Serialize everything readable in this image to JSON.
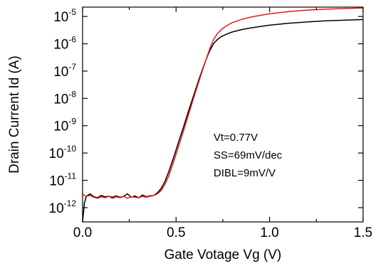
{
  "chart_data": {
    "type": "line",
    "xlabel": "Gate Votage Vg (V)",
    "ylabel": "Drain Current Id (A)",
    "xlim": [
      0.0,
      1.5
    ],
    "ylim": [
      3e-13,
      2.2e-05
    ],
    "yscale": "log",
    "grid": false,
    "x_ticks": [
      "0.0",
      "0.5",
      "1.0",
      "1.5"
    ],
    "x_tick_values": [
      0.0,
      0.5,
      1.0,
      1.5
    ],
    "y_ticks": [
      {
        "base": "10",
        "exp": "-5",
        "value": 1e-05
      },
      {
        "base": "10",
        "exp": "-6",
        "value": 1e-06
      },
      {
        "base": "10",
        "exp": "-7",
        "value": 1e-07
      },
      {
        "base": "10",
        "exp": "-8",
        "value": 1e-08
      },
      {
        "base": "10",
        "exp": "-9",
        "value": 1e-09
      },
      {
        "base": "10",
        "exp": "-10",
        "value": 1e-10
      },
      {
        "base": "10",
        "exp": "-11",
        "value": 1e-11
      },
      {
        "base": "10",
        "exp": "-12",
        "value": 1e-12
      }
    ],
    "annotations": [
      "Vt=0.77V",
      "SS=69mV/dec",
      "DIBL=9mV/V"
    ],
    "series": [
      {
        "color": "#000000",
        "x": [
          0.0,
          0.01,
          0.02,
          0.04,
          0.06,
          0.08,
          0.1,
          0.12,
          0.14,
          0.16,
          0.18,
          0.2,
          0.22,
          0.24,
          0.26,
          0.28,
          0.3,
          0.32,
          0.34,
          0.36,
          0.38,
          0.4,
          0.42,
          0.44,
          0.46,
          0.48,
          0.5,
          0.52,
          0.54,
          0.56,
          0.58,
          0.6,
          0.62,
          0.64,
          0.66,
          0.68,
          0.7,
          0.72,
          0.74,
          0.76,
          0.78,
          0.8,
          0.85,
          0.9,
          0.95,
          1.0,
          1.1,
          1.2,
          1.3,
          1.4,
          1.5
        ],
        "y": [
          3e-13,
          1.5e-12,
          2.6e-12,
          3.2e-12,
          2.5e-12,
          2.3e-12,
          2.8e-12,
          2.5e-12,
          2.6e-12,
          2.4e-12,
          2.7e-12,
          2.4e-12,
          2.6e-12,
          3.2e-12,
          2.4e-12,
          2.7e-12,
          2.3e-12,
          2.9e-12,
          2.5e-12,
          2.7e-12,
          2.8e-12,
          3.5e-12,
          5e-12,
          9e-12,
          2e-11,
          5e-11,
          1.3e-10,
          3.5e-10,
          9e-10,
          2.5e-09,
          6.5e-09,
          1.7e-08,
          4.5e-08,
          1.1e-07,
          2.6e-07,
          5.5e-07,
          1e-06,
          1.4e-06,
          1.8e-06,
          2.1e-06,
          2.4e-06,
          2.7e-06,
          3.3e-06,
          3.8e-06,
          4.3e-06,
          4.8e-06,
          5.6e-06,
          6.3e-06,
          6.9e-06,
          7.3e-06,
          7.7e-06
        ]
      },
      {
        "color": "#e41a1c",
        "x": [
          0.0,
          0.02,
          0.04,
          0.06,
          0.08,
          0.1,
          0.12,
          0.14,
          0.16,
          0.18,
          0.2,
          0.22,
          0.24,
          0.26,
          0.28,
          0.3,
          0.32,
          0.34,
          0.36,
          0.38,
          0.4,
          0.42,
          0.44,
          0.46,
          0.48,
          0.5,
          0.52,
          0.54,
          0.56,
          0.58,
          0.6,
          0.62,
          0.64,
          0.66,
          0.68,
          0.7,
          0.72,
          0.74,
          0.76,
          0.78,
          0.8,
          0.85,
          0.9,
          0.95,
          1.0,
          1.1,
          1.2,
          1.3,
          1.4,
          1.5
        ],
        "y": [
          3.1e-12,
          2.6e-12,
          2.8e-12,
          2.4e-12,
          2.2e-12,
          2.5e-12,
          2.3e-12,
          2.6e-12,
          2.2e-12,
          2.5e-12,
          2.3e-12,
          2.6e-12,
          2.2e-12,
          2.5e-12,
          2.4e-12,
          2.3e-12,
          2.6e-12,
          2.4e-12,
          2.6e-12,
          2.8e-12,
          3.2e-12,
          4.2e-12,
          7e-12,
          1.4e-11,
          3.5e-11,
          9e-11,
          2.4e-10,
          6.5e-10,
          1.8e-09,
          5e-09,
          1.4e-08,
          3.8e-08,
          1e-07,
          2.6e-07,
          6.5e-07,
          1.4e-06,
          2.3e-06,
          3.2e-06,
          4.1e-06,
          5e-06,
          5.9e-06,
          7.8e-06,
          9.5e-06,
          1.1e-05,
          1.25e-05,
          1.5e-05,
          1.7e-05,
          1.85e-05,
          1.95e-05,
          2.05e-05
        ]
      }
    ]
  }
}
